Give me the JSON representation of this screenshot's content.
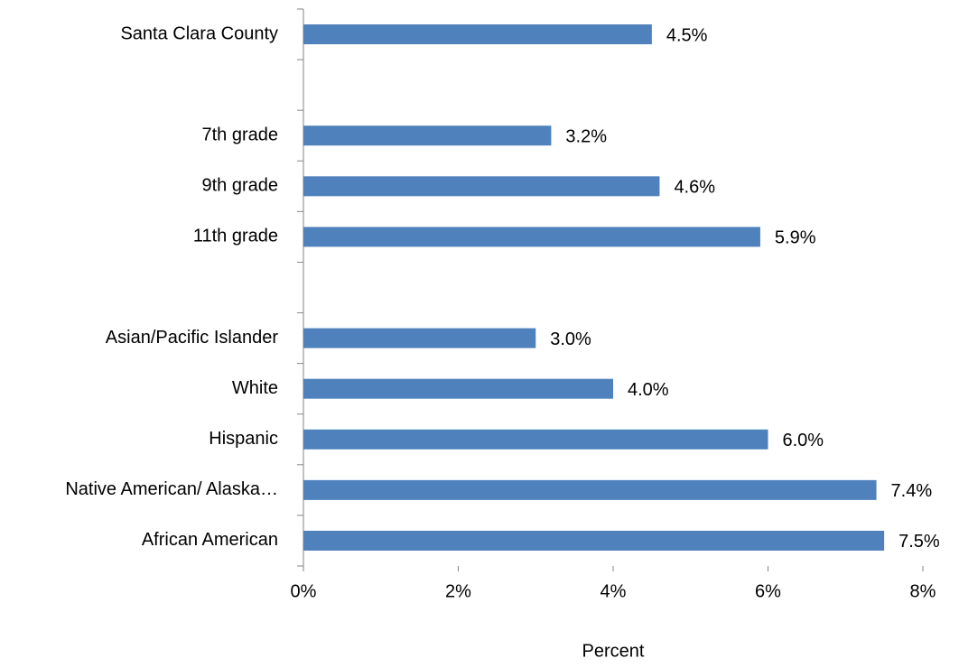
{
  "chart_data": {
    "type": "barh",
    "categories": [
      "Santa Clara County",
      null,
      "7th grade",
      "9th grade",
      "11th grade",
      null,
      "Asian/Pacific Islander",
      "White",
      "Hispanic",
      "Native American/ Alaska…",
      "African American"
    ],
    "values": [
      4.5,
      null,
      3.2,
      4.6,
      5.9,
      null,
      3.0,
      4.0,
      6.0,
      7.4,
      7.5
    ],
    "value_labels": [
      "4.5%",
      null,
      "3.2%",
      "4.6%",
      "5.9%",
      null,
      "3.0%",
      "4.0%",
      "6.0%",
      "7.4%",
      "7.5%"
    ],
    "color": "#4f81bd",
    "x_label": "Percent",
    "xlim": [
      0,
      8
    ],
    "xticks": [
      {
        "value": 0,
        "label": "0%"
      },
      {
        "value": 2,
        "label": "2%"
      },
      {
        "value": 4,
        "label": "4%"
      },
      {
        "value": 6,
        "label": "6%"
      },
      {
        "value": 8,
        "label": "8%"
      }
    ]
  }
}
